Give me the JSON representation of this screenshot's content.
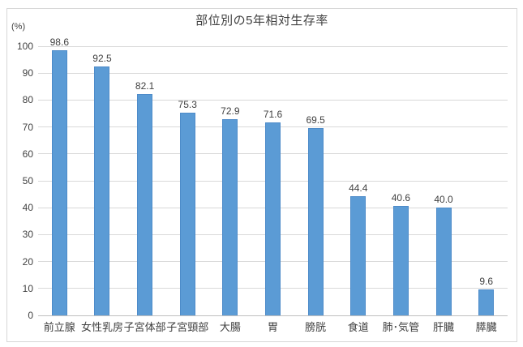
{
  "chart_data": {
    "type": "bar",
    "title": "部位別の5年相対生存率",
    "ylabel": "(%)",
    "xlabel": "",
    "categories": [
      "前立腺",
      "女性乳房",
      "子宮体部",
      "子宮頸部",
      "大腸",
      "胃",
      "膀胱",
      "食道",
      "肺･気管",
      "肝臓",
      "膵臓"
    ],
    "values": [
      98.6,
      92.5,
      82.1,
      75.3,
      72.9,
      71.6,
      69.5,
      44.4,
      40.6,
      40.0,
      9.6
    ],
    "value_labels": [
      "98.6",
      "92.5",
      "82.1",
      "75.3",
      "72.9",
      "71.6",
      "69.5",
      "44.4",
      "40.6",
      "40.0",
      "9.6"
    ],
    "ylim": [
      0,
      100
    ],
    "ytick_step": 10,
    "yticks": [
      "0",
      "10",
      "20",
      "30",
      "40",
      "50",
      "60",
      "70",
      "80",
      "90",
      "100"
    ],
    "grid": true,
    "legend": "none",
    "colors": {
      "bar_fill": "#5b9bd5",
      "bar_border": "#4d8bc9",
      "gridline": "#d9d9d9",
      "axis_line": "#bfbfbf",
      "text": "#404040",
      "chart_border": "#d7d7d7",
      "background": "#ffffff"
    }
  }
}
